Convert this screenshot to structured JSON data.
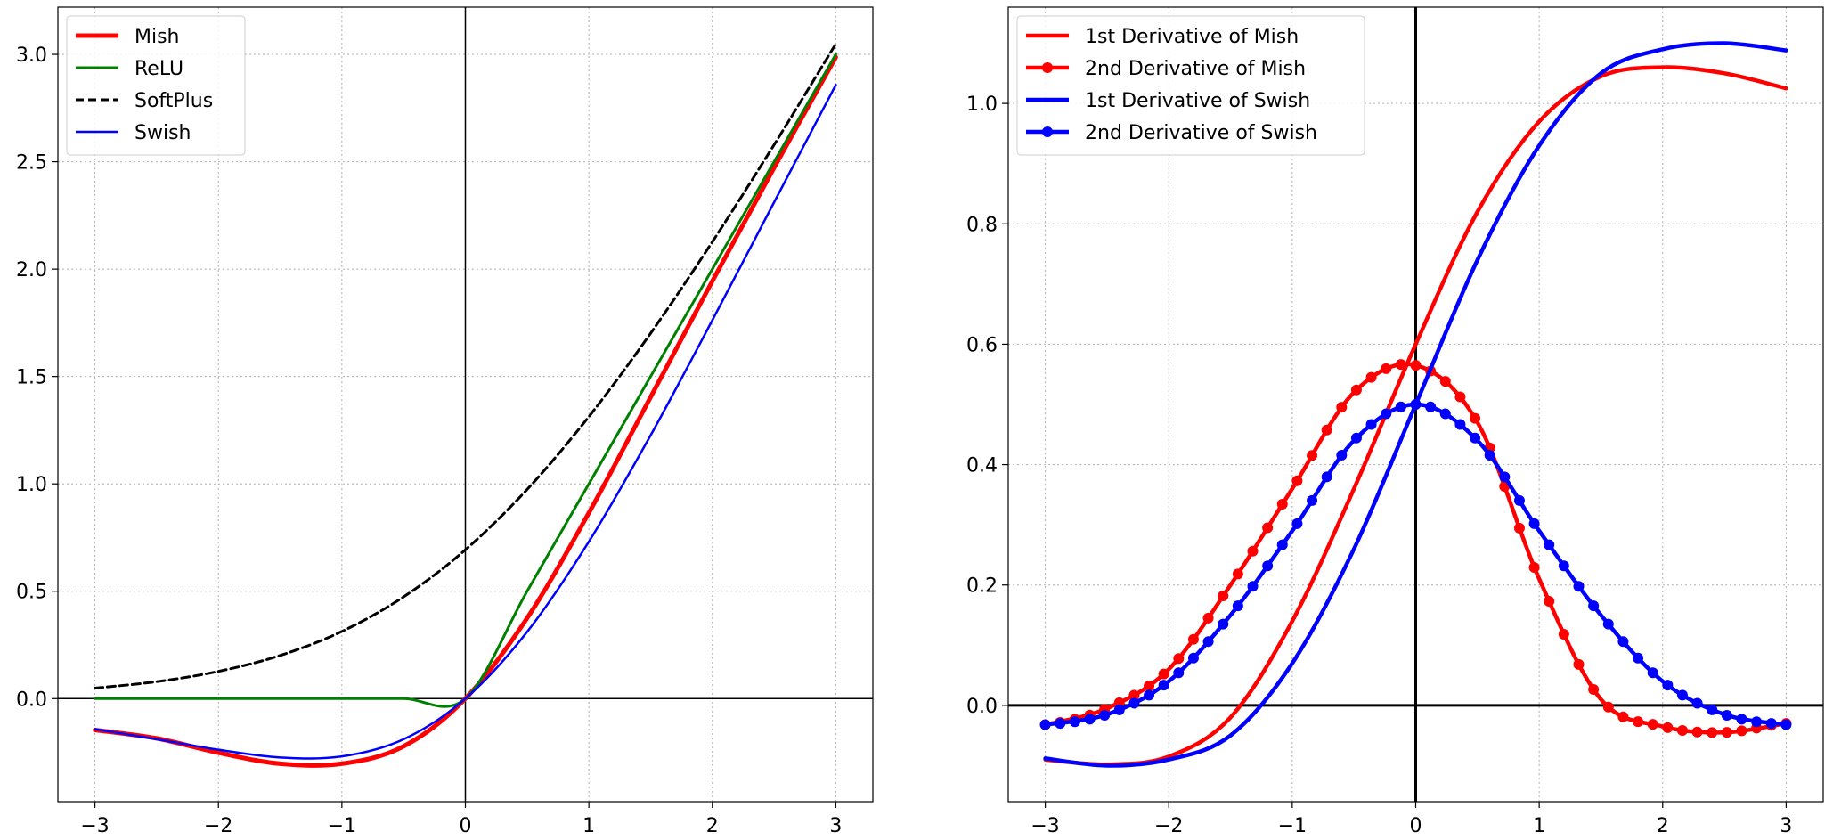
{
  "chart_data": [
    {
      "type": "line",
      "title": "",
      "xlabel": "",
      "ylabel": "",
      "xlim": [
        -3.3,
        3.3
      ],
      "ylim": [
        -0.48,
        3.22
      ],
      "x_ticks": [
        -3,
        -2,
        -1,
        0,
        1,
        2,
        3
      ],
      "x_tick_labels": [
        "−3",
        "−2",
        "−1",
        "0",
        "1",
        "2",
        "3"
      ],
      "y_ticks": [
        0.0,
        0.5,
        1.0,
        1.5,
        2.0,
        2.5,
        3.0
      ],
      "y_tick_labels": [
        "0.0",
        "0.5",
        "1.0",
        "1.5",
        "2.0",
        "2.5",
        "3.0"
      ],
      "grid": true,
      "legend_position": "top-left",
      "x": [
        -3,
        -2.5,
        -2,
        -1.5,
        -1,
        -0.5,
        0,
        0.5,
        1,
        1.5,
        2,
        2.5,
        3
      ],
      "series": [
        {
          "name": "Mish",
          "color": "#ff0000",
          "style": "solid",
          "values": [
            -0.146,
            -0.185,
            -0.252,
            -0.303,
            -0.303,
            -0.222,
            0.0,
            0.375,
            0.865,
            1.404,
            1.944,
            2.472,
            2.987
          ]
        },
        {
          "name": "ReLU",
          "color": "#008000",
          "style": "solid",
          "values": [
            0,
            0,
            0,
            0,
            0,
            0,
            0,
            0.5,
            1.0,
            1.5,
            2.0,
            2.5,
            3.0
          ]
        },
        {
          "name": "SoftPlus",
          "color": "#000000",
          "style": "dashed",
          "values": [
            0.049,
            0.079,
            0.127,
            0.201,
            0.313,
            0.474,
            0.693,
            0.974,
            1.313,
            1.701,
            2.127,
            2.579,
            3.049
          ]
        },
        {
          "name": "Swish",
          "color": "#0000ff",
          "style": "solid",
          "values": [
            -0.142,
            -0.189,
            -0.238,
            -0.274,
            -0.269,
            -0.189,
            0.0,
            0.311,
            0.731,
            1.226,
            1.762,
            2.311,
            2.858
          ]
        }
      ]
    },
    {
      "type": "line",
      "title": "",
      "xlabel": "",
      "ylabel": "",
      "xlim": [
        -3.3,
        3.3
      ],
      "ylim": [
        -0.16,
        1.16
      ],
      "x_ticks": [
        -3,
        -2,
        -1,
        0,
        1,
        2,
        3
      ],
      "x_tick_labels": [
        "−3",
        "−2",
        "−1",
        "0",
        "1",
        "2",
        "3"
      ],
      "y_ticks": [
        0.0,
        0.2,
        0.4,
        0.6,
        0.8,
        1.0
      ],
      "y_tick_labels": [
        "0.0",
        "0.2",
        "0.4",
        "0.6",
        "0.8",
        "1.0"
      ],
      "grid": true,
      "legend_position": "top-left",
      "x": [
        -3,
        -2.5,
        -2,
        -1.5,
        -1,
        -0.5,
        0,
        0.5,
        1,
        1.5,
        2,
        2.5,
        3
      ],
      "series": [
        {
          "name": "1st Derivative of Mish",
          "color": "#ff0000",
          "style": "solid",
          "markers": false,
          "values": [
            -0.09,
            -0.098,
            -0.085,
            -0.02,
            0.14,
            0.36,
            0.6,
            0.82,
            0.97,
            1.045,
            1.06,
            1.05,
            1.025
          ]
        },
        {
          "name": "2nd Derivative of Mish",
          "color": "#ff0000",
          "style": "solid",
          "markers": true,
          "values": [
            -0.032,
            -0.005,
            0.06,
            0.2,
            0.36,
            0.52,
            0.565,
            0.47,
            0.21,
            0.01,
            -0.035,
            -0.045,
            -0.03
          ]
        },
        {
          "name": "1st Derivative of Swish",
          "color": "#0000ff",
          "style": "solid",
          "markers": false,
          "values": [
            -0.088,
            -0.1,
            -0.09,
            -0.05,
            0.07,
            0.26,
            0.5,
            0.74,
            0.93,
            1.05,
            1.09,
            1.1,
            1.088
          ]
        },
        {
          "name": "2nd Derivative of Swish",
          "color": "#0000ff",
          "style": "solid",
          "markers": true,
          "values": [
            -0.032,
            -0.015,
            0.04,
            0.15,
            0.29,
            0.44,
            0.5,
            0.44,
            0.29,
            0.15,
            0.04,
            -0.015,
            -0.032
          ]
        }
      ]
    }
  ]
}
